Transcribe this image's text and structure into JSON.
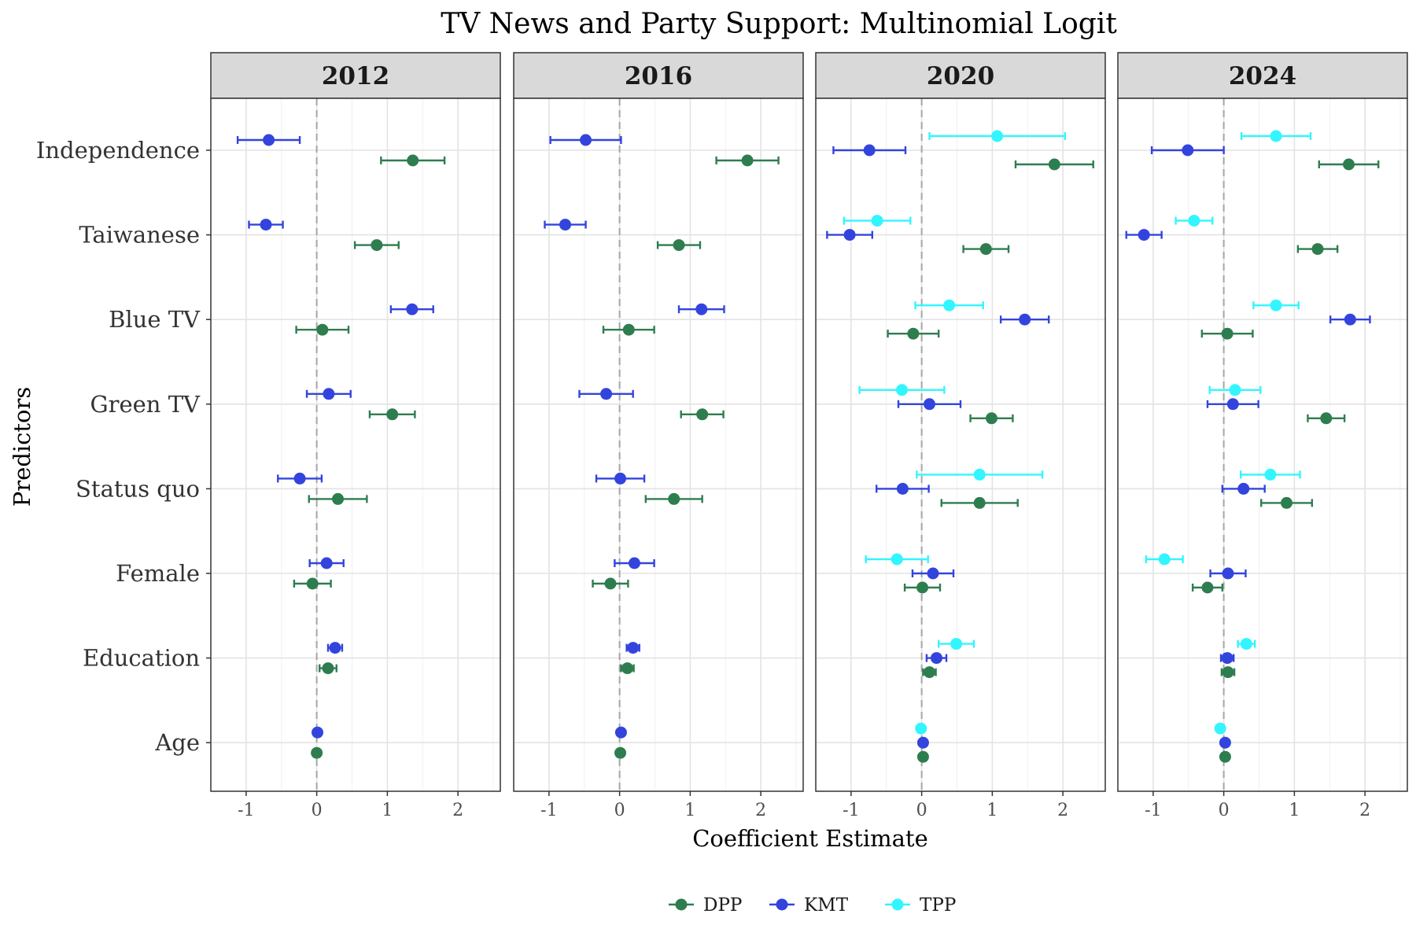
{
  "chart_data": {
    "type": "scatter",
    "subtype": "coefficient-dot-and-whisker, faceted by year",
    "title": "TV News and Party Support: Multinomial Logit",
    "xlabel": "Coefficient Estimate",
    "ylabel": "Predictors",
    "xlim": [
      -1.5,
      2.6
    ],
    "x_ticks": [
      -1,
      0,
      1,
      2
    ],
    "x_tick_labels": [
      "-1",
      "0",
      "1",
      "2"
    ],
    "reference_line": 0,
    "grid": true,
    "legend_position": "bottom",
    "categories": [
      "Independence",
      "Taiwanese",
      "Blue TV",
      "Green TV",
      "Status quo",
      "Female",
      "Education",
      "Age"
    ],
    "parties": [
      {
        "name": "DPP",
        "color": "#2e7d4f"
      },
      {
        "name": "KMT",
        "color": "#3344dd"
      },
      {
        "name": "TPP",
        "color": "#33f5ff"
      }
    ],
    "facets": [
      {
        "label": "2012",
        "series": [
          {
            "name": "KMT",
            "estimates": [
              -0.68,
              -0.72,
              1.35,
              0.17,
              -0.24,
              0.14,
              0.26,
              0.01
            ],
            "lower": [
              -1.12,
              -0.96,
              1.05,
              -0.14,
              -0.55,
              -0.1,
              0.16,
              0.0
            ],
            "upper": [
              -0.24,
              -0.48,
              1.65,
              0.48,
              0.07,
              0.38,
              0.36,
              0.02
            ]
          },
          {
            "name": "DPP",
            "estimates": [
              1.36,
              0.85,
              0.08,
              1.07,
              0.3,
              -0.06,
              0.16,
              0.0
            ],
            "lower": [
              0.91,
              0.54,
              -0.29,
              0.75,
              -0.11,
              -0.32,
              0.04,
              -0.01
            ],
            "upper": [
              1.81,
              1.16,
              0.45,
              1.39,
              0.71,
              0.2,
              0.28,
              0.01
            ]
          }
        ]
      },
      {
        "label": "2016",
        "series": [
          {
            "name": "KMT",
            "estimates": [
              -0.48,
              -0.77,
              1.16,
              -0.19,
              0.01,
              0.21,
              0.19,
              0.02
            ],
            "lower": [
              -0.98,
              -1.06,
              0.84,
              -0.57,
              -0.33,
              -0.07,
              0.1,
              0.01
            ],
            "upper": [
              0.02,
              -0.48,
              1.48,
              0.19,
              0.35,
              0.49,
              0.28,
              0.03
            ]
          },
          {
            "name": "DPP",
            "estimates": [
              1.81,
              0.84,
              0.13,
              1.17,
              0.77,
              -0.13,
              0.11,
              0.01
            ],
            "lower": [
              1.37,
              0.54,
              -0.23,
              0.87,
              0.37,
              -0.38,
              0.02,
              0.0
            ],
            "upper": [
              2.25,
              1.14,
              0.49,
              1.47,
              1.17,
              0.12,
              0.2,
              0.02
            ]
          }
        ]
      },
      {
        "label": "2020",
        "series": [
          {
            "name": "TPP",
            "estimates": [
              1.07,
              -0.63,
              0.39,
              -0.28,
              0.82,
              -0.35,
              0.49,
              -0.01
            ],
            "lower": [
              0.11,
              -1.1,
              -0.09,
              -0.88,
              -0.07,
              -0.79,
              0.24,
              -0.02
            ],
            "upper": [
              2.03,
              -0.16,
              0.87,
              0.32,
              1.71,
              0.09,
              0.74,
              0.0
            ]
          },
          {
            "name": "KMT",
            "estimates": [
              -0.74,
              -1.02,
              1.46,
              0.11,
              -0.27,
              0.16,
              0.21,
              0.02
            ],
            "lower": [
              -1.25,
              -1.34,
              1.12,
              -0.33,
              -0.64,
              -0.13,
              0.07,
              0.01
            ],
            "upper": [
              -0.23,
              -0.7,
              1.8,
              0.55,
              0.1,
              0.45,
              0.35,
              0.03
            ]
          },
          {
            "name": "DPP",
            "estimates": [
              1.88,
              0.91,
              -0.12,
              0.99,
              0.82,
              0.01,
              0.11,
              0.02
            ],
            "lower": [
              1.33,
              0.59,
              -0.48,
              0.69,
              0.28,
              -0.24,
              0.02,
              0.01
            ],
            "upper": [
              2.43,
              1.23,
              0.24,
              1.29,
              1.36,
              0.26,
              0.2,
              0.03
            ]
          }
        ]
      },
      {
        "label": "2024",
        "series": [
          {
            "name": "TPP",
            "estimates": [
              0.74,
              -0.42,
              0.74,
              0.16,
              0.66,
              -0.84,
              0.32,
              -0.05
            ],
            "lower": [
              0.25,
              -0.68,
              0.42,
              -0.2,
              0.24,
              -1.1,
              0.2,
              -0.06
            ],
            "upper": [
              1.23,
              -0.16,
              1.06,
              0.52,
              1.08,
              -0.58,
              0.44,
              -0.04
            ]
          },
          {
            "name": "KMT",
            "estimates": [
              -0.51,
              -1.13,
              1.79,
              0.13,
              0.28,
              0.06,
              0.05,
              0.02
            ],
            "lower": [
              -1.02,
              -1.38,
              1.51,
              -0.23,
              -0.02,
              -0.19,
              -0.04,
              0.01
            ],
            "upper": [
              0.0,
              -0.88,
              2.07,
              0.49,
              0.58,
              0.31,
              0.14,
              0.03
            ]
          },
          {
            "name": "DPP",
            "estimates": [
              1.77,
              1.33,
              0.05,
              1.45,
              0.89,
              -0.23,
              0.06,
              0.02
            ],
            "lower": [
              1.35,
              1.05,
              -0.31,
              1.19,
              0.53,
              -0.44,
              -0.03,
              0.01
            ],
            "upper": [
              2.19,
              1.61,
              0.41,
              1.71,
              1.25,
              -0.02,
              0.15,
              0.03
            ]
          }
        ]
      }
    ]
  }
}
